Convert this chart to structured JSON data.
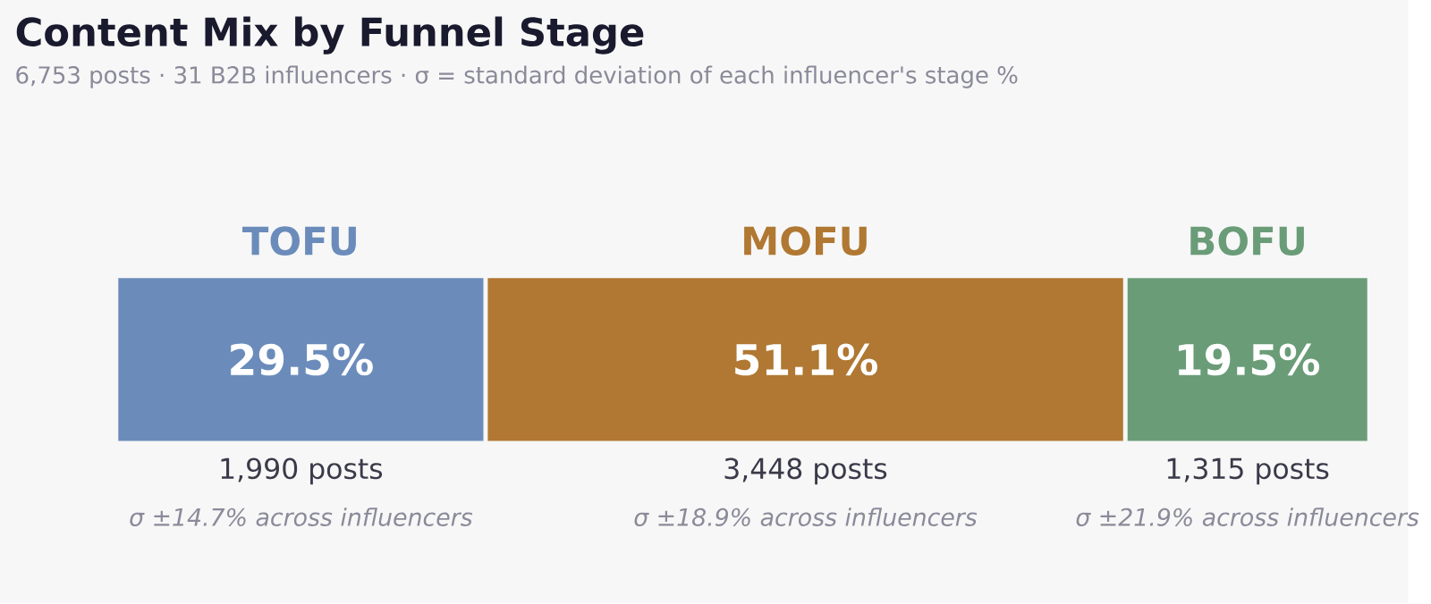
{
  "chart_data": {
    "type": "bar",
    "title": "Content Mix by Funnel Stage",
    "subtitle": "6,753 posts · 31 B2B influencers  ·  σ = standard deviation of each influencer's stage %",
    "stacked": true,
    "orientation": "horizontal",
    "categories": [
      null
    ],
    "series": [
      {
        "name": "TOFU",
        "color": "#6b8cbb",
        "values": [
          29.5
        ],
        "value_labels": [
          "29.5%"
        ]
      },
      {
        "name": "MOFU",
        "color": "#b07832",
        "values": [
          51.1
        ],
        "value_labels": [
          "51.1%"
        ]
      },
      {
        "name": "BOFU",
        "color": "#6a9c78",
        "values": [
          19.5
        ],
        "value_labels": [
          "19.5%"
        ]
      }
    ],
    "annotations": [
      "1,990 posts",
      "σ ±14.7% across influencers",
      "3,448 posts",
      "σ ±18.9% across influencers",
      "1,315 posts",
      "σ ±21.9% across influencers"
    ]
  }
}
